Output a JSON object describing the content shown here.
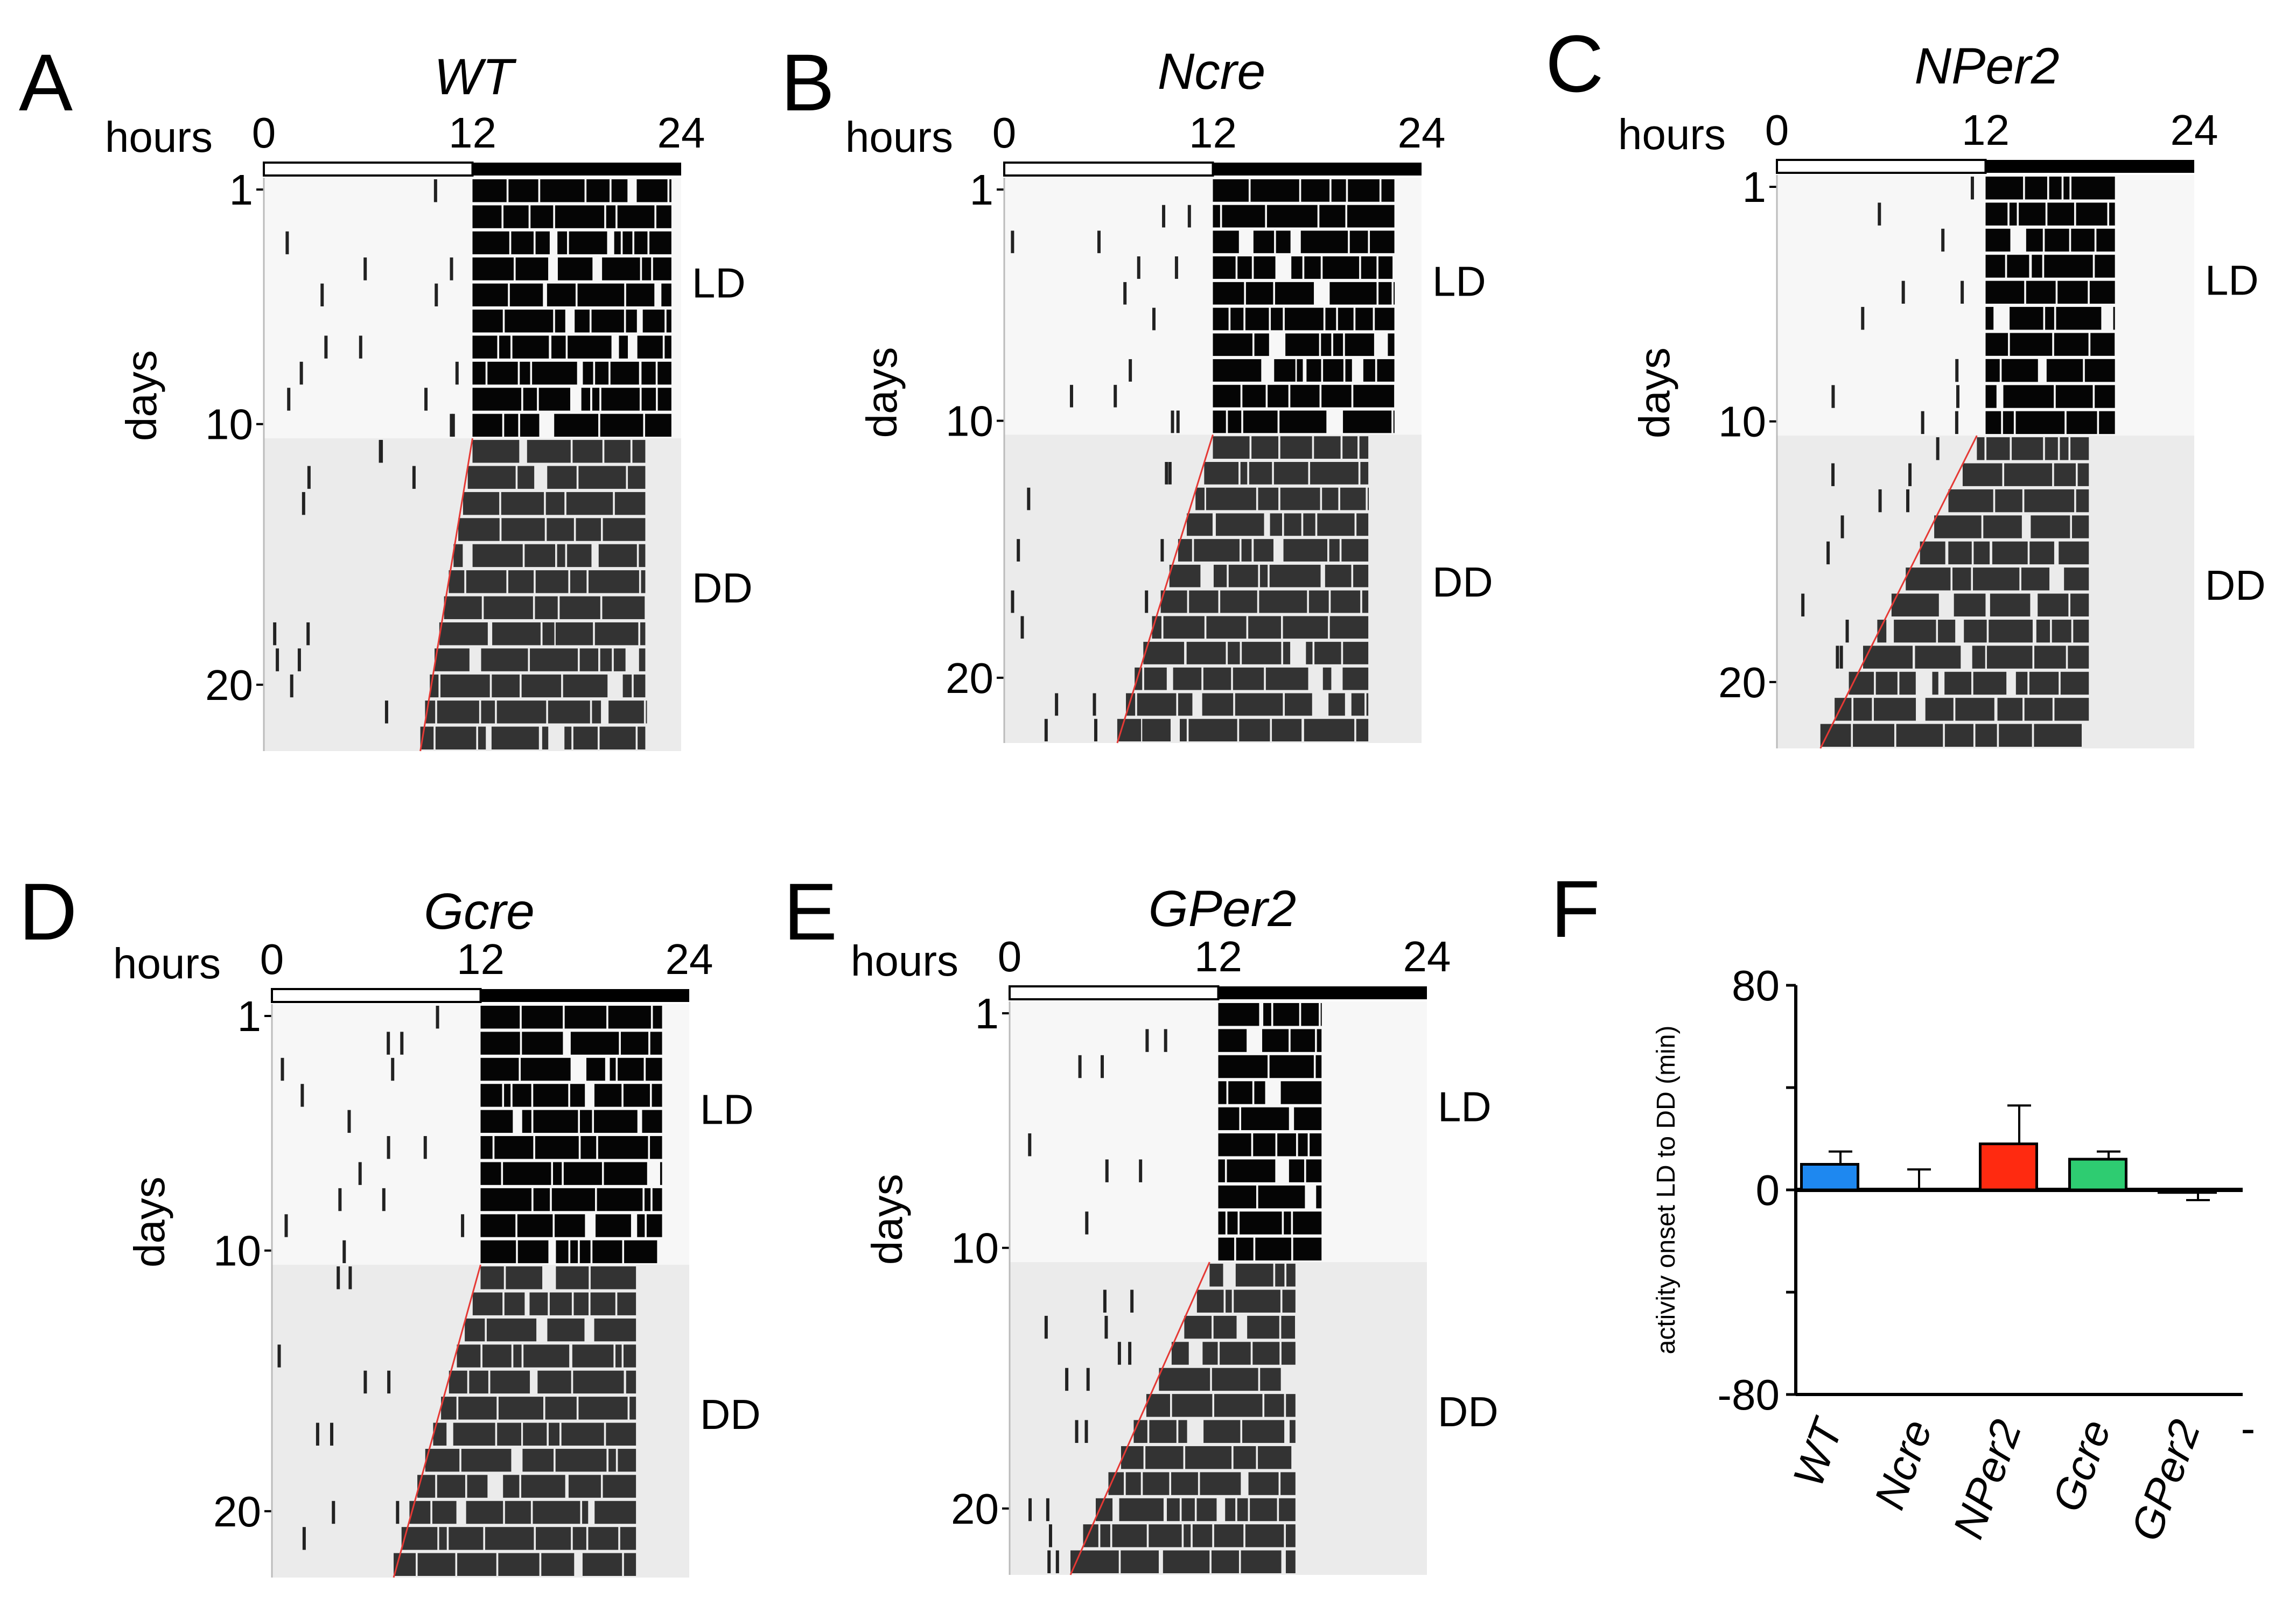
{
  "figure": {
    "panels": [
      {
        "letter": "A",
        "genotype": "WT",
        "hours_label": "hours",
        "hour_ticks": [
          "0",
          "12",
          "24"
        ],
        "days_label": "days",
        "day_ticks": [
          "1",
          "10",
          "20"
        ],
        "ld_label": "LD",
        "dd_label": "DD",
        "ld_days": 10,
        "total_days": 22,
        "dd_onset_start_h": 12.0,
        "dd_onset_end_h": 9.0,
        "activity_end_h": 23.5
      },
      {
        "letter": "B",
        "genotype": "Ncre",
        "hours_label": "hours",
        "hour_ticks": [
          "0",
          "12",
          "24"
        ],
        "days_label": "days",
        "day_ticks": [
          "1",
          "10",
          "20"
        ],
        "ld_label": "LD",
        "dd_label": "DD",
        "ld_days": 10,
        "total_days": 22,
        "dd_onset_start_h": 12.0,
        "dd_onset_end_h": 6.5,
        "activity_end_h": 22.5
      },
      {
        "letter": "C",
        "genotype": "NPer2",
        "hours_label": "hours",
        "hour_ticks": [
          "0",
          "12",
          "24"
        ],
        "days_label": "days",
        "day_ticks": [
          "1",
          "10",
          "20"
        ],
        "ld_label": "LD",
        "dd_label": "DD",
        "ld_days": 10,
        "total_days": 22,
        "dd_onset_start_h": 11.5,
        "dd_onset_end_h": 2.5,
        "activity_end_h": 19.5
      },
      {
        "letter": "D",
        "genotype": "Gcre",
        "hours_label": "hours",
        "hour_ticks": [
          "0",
          "12",
          "24"
        ],
        "days_label": "days",
        "day_ticks": [
          "1",
          "10",
          "20"
        ],
        "ld_label": "LD",
        "dd_label": "DD",
        "ld_days": 10,
        "total_days": 22,
        "dd_onset_start_h": 12.0,
        "dd_onset_end_h": 7.0,
        "activity_end_h": 22.5
      },
      {
        "letter": "E",
        "genotype": "GPer2",
        "hours_label": "hours",
        "hour_ticks": [
          "0",
          "12",
          "24"
        ],
        "days_label": "days",
        "day_ticks": [
          "1",
          "10",
          "20"
        ],
        "ld_label": "LD",
        "dd_label": "DD",
        "ld_days": 10,
        "total_days": 22,
        "dd_onset_start_h": 11.5,
        "dd_onset_end_h": 3.5,
        "activity_end_h": 18.0
      }
    ]
  },
  "chart_data": {
    "type": "bar",
    "panel_letter": "F",
    "categories": [
      "WT",
      "Ncre",
      "NPer2",
      "Gcre",
      "GPer2"
    ],
    "values": [
      10,
      0,
      18,
      12,
      -1
    ],
    "errors": [
      5,
      8,
      15,
      3,
      3
    ],
    "colors": [
      "#1e88f0",
      "#ffffff",
      "#ff2a10",
      "#2ecc71",
      "#ffffff"
    ],
    "ylabel": "activity onset LD to DD (min)",
    "ylim": [
      -80,
      80
    ],
    "yticks": [
      "80",
      "0",
      "-80"
    ],
    "extra_mark": "-"
  }
}
